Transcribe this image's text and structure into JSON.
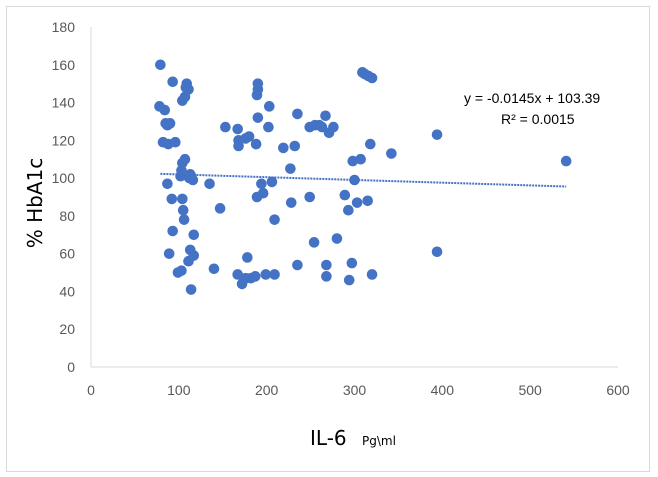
{
  "chart_data": {
    "type": "scatter",
    "xlabel": "IL-6",
    "xlabel_unit": "Pg\\ml",
    "ylabel": "% HbA1c",
    "xlim": [
      0,
      600
    ],
    "ylim": [
      0,
      180
    ],
    "x_ticks": [
      0,
      100,
      200,
      300,
      400,
      500,
      600
    ],
    "y_ticks": [
      0,
      20,
      40,
      60,
      80,
      100,
      120,
      140,
      160,
      180
    ],
    "grid": false,
    "legend": "none",
    "marker_color": "#4472c4",
    "trendline_color": "#4472c4",
    "trendline": {
      "slope": -0.0145,
      "intercept": 103.39,
      "x_range": [
        79,
        541
      ]
    },
    "equation": "y = -0.0145x + 103.39",
    "r_squared": "R² = 0.0015",
    "points": [
      [
        79,
        160
      ],
      [
        78,
        138
      ],
      [
        84,
        136
      ],
      [
        85,
        129
      ],
      [
        87,
        128
      ],
      [
        90,
        129
      ],
      [
        93,
        151
      ],
      [
        88,
        118
      ],
      [
        82,
        119
      ],
      [
        96,
        119
      ],
      [
        87,
        97
      ],
      [
        92,
        89
      ],
      [
        93,
        72
      ],
      [
        89,
        60
      ],
      [
        99,
        50
      ],
      [
        103,
        51
      ],
      [
        102,
        101
      ],
      [
        104,
        108
      ],
      [
        107,
        110
      ],
      [
        103,
        104
      ],
      [
        104,
        89
      ],
      [
        105,
        83
      ],
      [
        106,
        78
      ],
      [
        104,
        141
      ],
      [
        107,
        143
      ],
      [
        108,
        148
      ],
      [
        109,
        150
      ],
      [
        111,
        147
      ],
      [
        113,
        102
      ],
      [
        112,
        100
      ],
      [
        114,
        101
      ],
      [
        116,
        99
      ],
      [
        113,
        62
      ],
      [
        117,
        59
      ],
      [
        111,
        56
      ],
      [
        117,
        70
      ],
      [
        114,
        41
      ],
      [
        135,
        97
      ],
      [
        140,
        52
      ],
      [
        147,
        84
      ],
      [
        153,
        127
      ],
      [
        167,
        126
      ],
      [
        168,
        120
      ],
      [
        168,
        117
      ],
      [
        172,
        44
      ],
      [
        167,
        49
      ],
      [
        176,
        47
      ],
      [
        178,
        58
      ],
      [
        176,
        121
      ],
      [
        180,
        122
      ],
      [
        182,
        47
      ],
      [
        187,
        48
      ],
      [
        188,
        118
      ],
      [
        190,
        132
      ],
      [
        189,
        144
      ],
      [
        190,
        147
      ],
      [
        190,
        150
      ],
      [
        194,
        97
      ],
      [
        189,
        90
      ],
      [
        196,
        92
      ],
      [
        199,
        49
      ],
      [
        202,
        127
      ],
      [
        203,
        138
      ],
      [
        206,
        98
      ],
      [
        209,
        49
      ],
      [
        209,
        78
      ],
      [
        219,
        116
      ],
      [
        227,
        105
      ],
      [
        228,
        87
      ],
      [
        232,
        117
      ],
      [
        235,
        134
      ],
      [
        235,
        54
      ],
      [
        249,
        127
      ],
      [
        249,
        90
      ],
      [
        255,
        128
      ],
      [
        254,
        66
      ],
      [
        260,
        128
      ],
      [
        263,
        127
      ],
      [
        267,
        133
      ],
      [
        271,
        124
      ],
      [
        276,
        127
      ],
      [
        268,
        48
      ],
      [
        268,
        54
      ],
      [
        280,
        68
      ],
      [
        289,
        91
      ],
      [
        293,
        83
      ],
      [
        294,
        46
      ],
      [
        297,
        55
      ],
      [
        298,
        109
      ],
      [
        300,
        99
      ],
      [
        303,
        87
      ],
      [
        307,
        110
      ],
      [
        309,
        156
      ],
      [
        312,
        155
      ],
      [
        316,
        154
      ],
      [
        320,
        153
      ],
      [
        315,
        88
      ],
      [
        318,
        118
      ],
      [
        320,
        49
      ],
      [
        342,
        113
      ],
      [
        394,
        123
      ],
      [
        394,
        61
      ],
      [
        541,
        109
      ]
    ]
  }
}
